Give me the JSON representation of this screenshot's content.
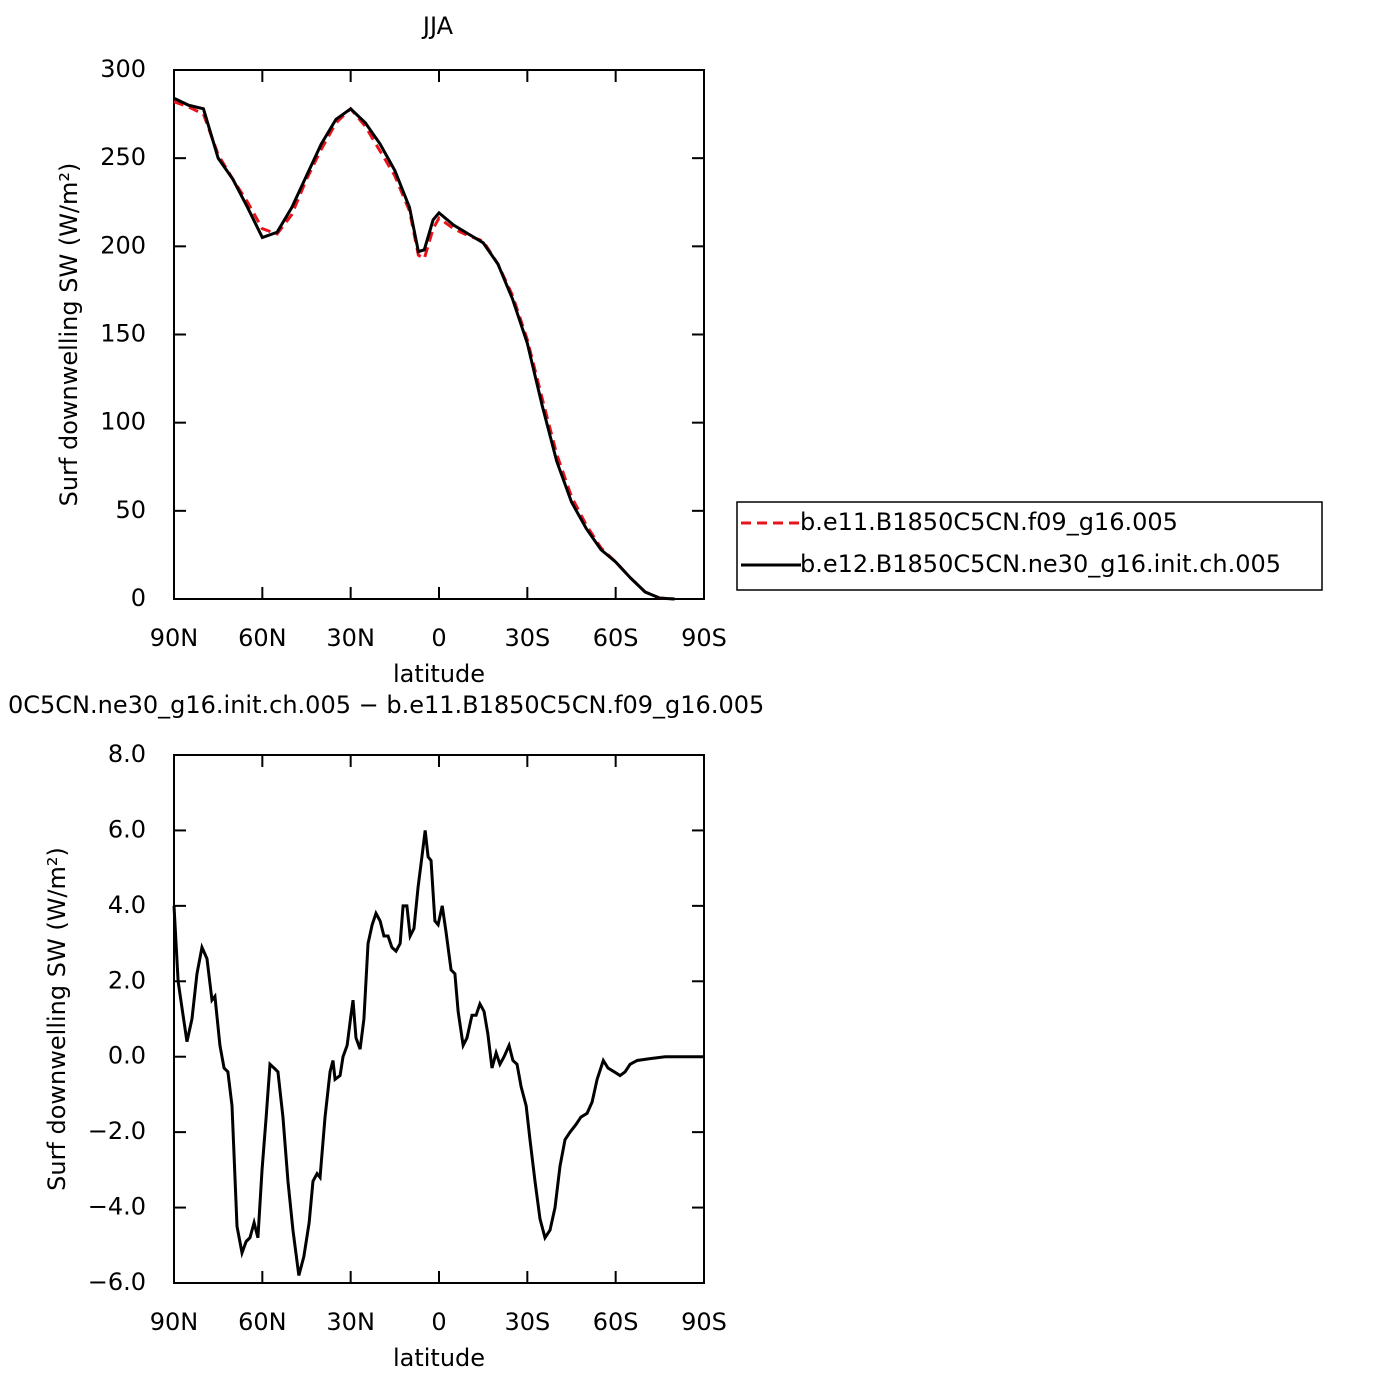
{
  "chart_data": [
    {
      "type": "line",
      "title": "JJA",
      "xlabel": "latitude",
      "ylabel": "Surf downwelling SW (W/m²)",
      "xlim": [
        90,
        -90
      ],
      "xticks": [
        {
          "value": 90,
          "label": "90N"
        },
        {
          "value": 60,
          "label": "60N"
        },
        {
          "value": 30,
          "label": "30N"
        },
        0,
        {
          "value": -30,
          "label": "30S"
        },
        {
          "value": -60,
          "label": "60S"
        },
        {
          "value": -90,
          "label": "90S"
        }
      ],
      "ylim": [
        0,
        300
      ],
      "yticks": [
        0,
        50,
        100,
        150,
        200,
        250,
        300
      ],
      "x": [
        90,
        85,
        80,
        75,
        70,
        65,
        60,
        55,
        50,
        45,
        40,
        35,
        30,
        25,
        20,
        15,
        10,
        7,
        5,
        2,
        0,
        -5,
        -10,
        -15,
        -20,
        -25,
        -30,
        -35,
        -40,
        -45,
        -50,
        -55,
        -60,
        -65,
        -70,
        -75,
        -80
      ],
      "legend": "right",
      "series": [
        {
          "name": "b.e11.B1850C5CN.f09_g16.005",
          "color": "#e8141c",
          "linestyle": "dashed",
          "values": [
            282,
            279,
            275,
            252,
            238,
            225,
            210,
            207,
            218,
            238,
            255,
            270,
            278,
            268,
            254,
            240,
            220,
            195,
            193,
            210,
            216,
            210,
            206,
            203,
            190,
            172,
            147,
            114,
            82,
            58,
            42,
            29,
            21,
            12,
            4,
            0.5,
            0
          ]
        },
        {
          "name": "b.e12.B1850C5CN.ne30_g16.init.ch.005",
          "color": "#000000",
          "linestyle": "solid",
          "values": [
            284,
            280,
            278,
            250,
            238,
            222,
            205,
            208,
            222,
            240,
            258,
            272,
            278,
            270,
            258,
            243,
            222,
            197,
            198,
            215,
            219,
            212,
            207,
            202,
            190,
            170,
            145,
            110,
            78,
            55,
            40,
            28,
            21,
            12,
            4,
            0.5,
            0
          ]
        }
      ]
    },
    {
      "type": "line",
      "title": "0C5CN.ne30_g16.init.ch.005 − b.e11.B1850C5CN.f09_g16.005",
      "xlabel": "latitude",
      "ylabel": "Surf downwelling SW (W/m²)",
      "xlim": [
        90,
        -90
      ],
      "xticks": [
        {
          "value": 90,
          "label": "90N"
        },
        {
          "value": 60,
          "label": "60N"
        },
        {
          "value": 30,
          "label": "30N"
        },
        0,
        {
          "value": -30,
          "label": "30S"
        },
        {
          "value": -60,
          "label": "60S"
        },
        {
          "value": -90,
          "label": "90S"
        }
      ],
      "ylim": [
        -6,
        8
      ],
      "yticks": [
        {
          "value": -6,
          "label": "−6.0"
        },
        {
          "value": -4,
          "label": "−4.0"
        },
        {
          "value": -2,
          "label": "−2.0"
        },
        {
          "value": 0,
          "label": "0.0"
        },
        {
          "value": 2,
          "label": "2.0"
        },
        {
          "value": 4,
          "label": "4.0"
        },
        {
          "value": 6,
          "label": "6.0"
        },
        {
          "value": 8,
          "label": "8.0"
        }
      ],
      "x": [
        90,
        88.6,
        87.3,
        85.6,
        83.9,
        82.2,
        80.5,
        78.8,
        77.1,
        76.1,
        74.4,
        73.0,
        71.7,
        70.3,
        68.6,
        66.9,
        65.5,
        64.2,
        62.8,
        61.5,
        60.1,
        58.7,
        57.4,
        56.0,
        54.7,
        53.0,
        51.3,
        49.6,
        47.6,
        45.9,
        44.1,
        42.8,
        41.4,
        40.4,
        38.7,
        37.0,
        36.0,
        35.3,
        33.6,
        32.6,
        31.2,
        29.9,
        29.2,
        28.2,
        26.8,
        25.5,
        24.1,
        22.7,
        21.4,
        20.0,
        18.7,
        17.3,
        16.0,
        14.6,
        13.2,
        12.2,
        10.9,
        9.8,
        8.5,
        7.1,
        5.8,
        4.7,
        3.7,
        2.7,
        1.4,
        0.3,
        -1.1,
        -2.4,
        -4.1,
        -5.4,
        -6.5,
        -8.2,
        -9.5,
        -11.2,
        -12.6,
        -13.9,
        -15.3,
        -16.6,
        -18.0,
        -19.4,
        -20.7,
        -22.1,
        -23.8,
        -25.1,
        -26.5,
        -27.9,
        -29.6,
        -30.9,
        -32.6,
        -34.3,
        -36.0,
        -37.7,
        -39.4,
        -41.1,
        -42.8,
        -44.5,
        -46.5,
        -48.2,
        -50.3,
        -52.0,
        -53.7,
        -55.8,
        -57.4,
        -59.5,
        -61.5,
        -63.2,
        -64.9,
        -67.3,
        -71.7,
        -76.8,
        -90
      ],
      "series": [
        {
          "color": "#000000",
          "linestyle": "solid",
          "values": [
            4.0,
            2.0,
            1.3,
            0.4,
            1.0,
            2.2,
            2.9,
            2.6,
            1.5,
            1.6,
            0.3,
            -0.3,
            -0.4,
            -1.3,
            -4.5,
            -5.2,
            -4.9,
            -4.8,
            -4.4,
            -4.8,
            -3.0,
            -1.6,
            -0.2,
            -0.3,
            -0.4,
            -1.6,
            -3.3,
            -4.6,
            -5.8,
            -5.3,
            -4.4,
            -3.3,
            -3.1,
            -3.2,
            -1.6,
            -0.4,
            -0.1,
            -0.6,
            -0.5,
            0.0,
            0.3,
            1.1,
            1.5,
            0.5,
            0.2,
            1.0,
            3.0,
            3.5,
            3.8,
            3.6,
            3.2,
            3.2,
            2.9,
            2.8,
            3.0,
            4.0,
            4.0,
            3.2,
            3.4,
            4.5,
            5.3,
            6.0,
            5.3,
            5.2,
            3.6,
            3.5,
            4.0,
            3.3,
            2.3,
            2.2,
            1.2,
            0.3,
            0.5,
            1.1,
            1.1,
            1.4,
            1.2,
            0.6,
            -0.3,
            0.1,
            -0.2,
            0.0,
            0.3,
            -0.1,
            -0.2,
            -0.8,
            -1.3,
            -2.2,
            -3.3,
            -4.3,
            -4.8,
            -4.6,
            -4.0,
            -2.9,
            -2.2,
            -2.0,
            -1.8,
            -1.6,
            -1.5,
            -1.2,
            -0.6,
            -0.1,
            -0.3,
            -0.4,
            -0.5,
            -0.4,
            -0.2,
            -0.1,
            -0.05,
            0,
            0
          ]
        }
      ]
    }
  ]
}
